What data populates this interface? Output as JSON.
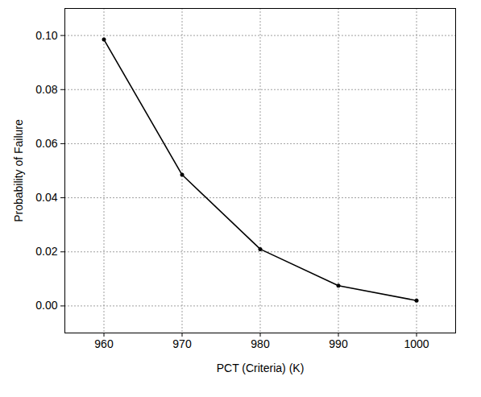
{
  "chart_data": {
    "type": "line",
    "x_label": "PCT (Criteria) (K)",
    "y_label": "Probability of Failure",
    "x": [
      960,
      970,
      980,
      990,
      1000
    ],
    "values": [
      0.0985,
      0.0485,
      0.021,
      0.0075,
      0.002
    ],
    "color": "#000000",
    "marker": "circle",
    "line_style": "solid",
    "xlim": [
      955,
      1005
    ],
    "xticks": [
      960,
      970,
      980,
      990,
      1000
    ],
    "ylim": [
      -0.01,
      0.11
    ],
    "yticks": [
      {
        "value": 0,
        "label": "0.00"
      },
      {
        "value": 0.02,
        "label": "0.02"
      },
      {
        "value": 0.04,
        "label": "0.04"
      },
      {
        "value": 0.06,
        "label": "0.06"
      },
      {
        "value": 0.08,
        "label": "0.08"
      },
      {
        "value": 0.1,
        "label": "0.10"
      }
    ],
    "grid": true
  }
}
